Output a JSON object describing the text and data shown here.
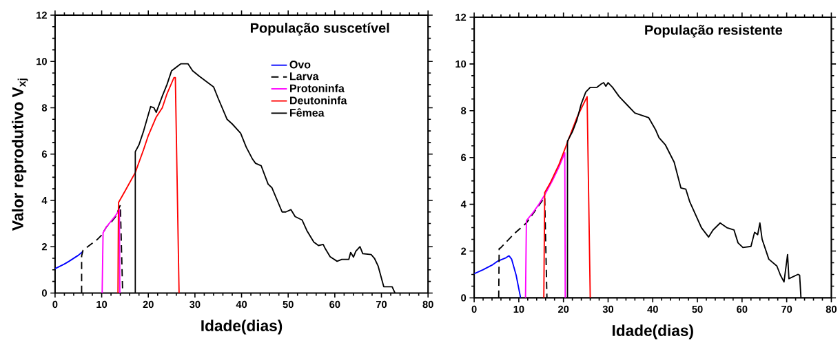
{
  "chart_data": [
    {
      "type": "line",
      "title": "População suscetível",
      "xlabel": "Idade(dias)",
      "ylabel": "Valor reprodutivo V$_{xj}$",
      "xlim": [
        0,
        80
      ],
      "ylim": [
        0,
        12
      ],
      "xticks": [
        0,
        10,
        20,
        30,
        40,
        50,
        60,
        70,
        80
      ],
      "yticks": [
        0,
        2,
        4,
        6,
        8,
        10,
        12
      ],
      "legend": "top right",
      "series": [
        {
          "name": "Ovo",
          "color": "#0000ff",
          "line_style": "solid",
          "x": [
            0,
            1,
            2,
            3,
            4,
            5,
            6
          ],
          "values": [
            1.05,
            1.15,
            1.25,
            1.37,
            1.5,
            1.63,
            1.8
          ]
        },
        {
          "name": "Larva",
          "color": "#000000",
          "line_style": "dashed",
          "x": [
            5.7,
            5.7,
            6,
            7,
            8,
            9,
            10,
            11,
            12,
            13,
            14,
            14.5
          ],
          "values": [
            0,
            1.6,
            1.85,
            2.0,
            2.15,
            2.3,
            2.5,
            2.85,
            3.05,
            3.3,
            3.8,
            0
          ]
        },
        {
          "name": "Protoninfa",
          "color": "#ff00ff",
          "line_style": "solid",
          "x": [
            10.1,
            10.3,
            11,
            12,
            13,
            13.8,
            13.9
          ],
          "values": [
            0,
            2.6,
            2.85,
            3.1,
            3.35,
            3.6,
            0
          ]
        },
        {
          "name": "Deutoninfa",
          "color": "#ff0000",
          "line_style": "solid",
          "x": [
            13.5,
            13.6,
            15,
            17.2,
            19,
            20,
            21.7,
            23,
            24,
            25.5,
            25.8,
            26.6
          ],
          "values": [
            0,
            3.9,
            4.4,
            5.2,
            6.2,
            6.8,
            7.6,
            8.0,
            8.6,
            9.3,
            9.3,
            0
          ]
        },
        {
          "name": "Fêmea",
          "color": "#000000",
          "line_style": "solid",
          "x": [
            17.2,
            17.2,
            18,
            19,
            20,
            20.5,
            21.2,
            21.7,
            23,
            24,
            25,
            26,
            27,
            28.5,
            29.5,
            31,
            33,
            34,
            35,
            36.9,
            38,
            39.8,
            41,
            42.3,
            43,
            44.2,
            45.7,
            46.5,
            48.7,
            49.5,
            50.6,
            51.5,
            53,
            54,
            55.5,
            56.5,
            57.5,
            58,
            59,
            60.5,
            61.5,
            63,
            63.4,
            64,
            64.5,
            65.4,
            66,
            67.8,
            68.5,
            69.3,
            70.5,
            72.3,
            72.9
          ],
          "values": [
            0,
            6.1,
            6.4,
            7.0,
            7.7,
            8.05,
            8.0,
            7.8,
            8.5,
            9.0,
            9.6,
            9.75,
            9.9,
            9.9,
            9.6,
            9.35,
            9.05,
            8.9,
            8.4,
            7.5,
            7.3,
            6.9,
            6.3,
            5.8,
            5.6,
            5.5,
            4.7,
            4.55,
            3.5,
            3.5,
            3.6,
            3.3,
            3.15,
            2.7,
            2.2,
            2.05,
            2.1,
            1.9,
            1.57,
            1.37,
            1.45,
            1.45,
            1.75,
            1.55,
            1.8,
            2.0,
            1.7,
            1.66,
            1.5,
            1.16,
            0.27,
            0.27,
            0
          ]
        }
      ]
    },
    {
      "type": "line",
      "title": "População resistente",
      "xlabel": "Idade(dias)",
      "xlim": [
        0,
        80
      ],
      "ylim": [
        0,
        12
      ],
      "xticks": [
        0,
        10,
        20,
        30,
        40,
        50,
        60,
        70,
        80
      ],
      "yticks": [
        0,
        2,
        4,
        6,
        8,
        10,
        12
      ],
      "series": [
        {
          "color": "#0000ff",
          "line_style": "solid",
          "x": [
            0,
            2,
            4,
            5.2,
            7,
            7.8,
            8.4,
            9.4,
            10.4
          ],
          "values": [
            1.03,
            1.2,
            1.4,
            1.56,
            1.7,
            1.8,
            1.65,
            0.97,
            0
          ]
        },
        {
          "color": "#000000",
          "line_style": "dashed",
          "x": [
            5.5,
            5.6,
            6,
            8,
            9,
            11.7,
            15.8,
            16.3
          ],
          "values": [
            0,
            2.1,
            2.15,
            2.55,
            2.75,
            3.2,
            4.3,
            0
          ]
        },
        {
          "color": "#ff00ff",
          "line_style": "solid",
          "x": [
            11.5,
            11.7,
            13,
            14.5,
            15.8,
            17.5,
            19,
            20.3,
            20.4
          ],
          "values": [
            0,
            3.3,
            3.6,
            4.0,
            4.4,
            5.0,
            5.6,
            6.2,
            0
          ]
        },
        {
          "color": "#ff0000",
          "line_style": "solid",
          "x": [
            15.6,
            15.8,
            17,
            18,
            19,
            20,
            21,
            22,
            23,
            24,
            25.3,
            26
          ],
          "values": [
            0,
            4.5,
            4.9,
            5.3,
            5.7,
            6.2,
            6.7,
            7.2,
            7.7,
            8.1,
            8.6,
            0
          ]
        },
        {
          "color": "#000000",
          "line_style": "solid",
          "x": [
            20.9,
            20.9,
            22,
            23,
            24,
            25,
            26,
            27.5,
            28.5,
            29,
            29.5,
            30,
            31,
            32.5,
            34.5,
            36,
            39.1,
            40.6,
            41.4,
            42.8,
            44.8,
            46.3,
            47.4,
            48.3,
            50.9,
            52.5,
            53.5,
            55.1,
            56.6,
            58.2,
            59.1,
            60.2,
            62,
            62.8,
            63.5,
            64,
            64.5,
            66,
            67.8,
            68.6,
            69.4,
            70.2,
            70.5,
            72.5,
            72.9,
            73.2
          ],
          "values": [
            0,
            6.7,
            7.1,
            7.6,
            8.3,
            8.8,
            9.0,
            9.0,
            9.15,
            9.2,
            9.05,
            9.2,
            9.0,
            8.6,
            8.2,
            7.9,
            7.7,
            7.2,
            6.85,
            6.55,
            5.8,
            4.7,
            4.65,
            4.1,
            3.0,
            2.6,
            2.9,
            3.2,
            3.0,
            2.9,
            2.35,
            2.15,
            2.2,
            2.8,
            2.7,
            3.2,
            2.5,
            1.65,
            1.36,
            0.97,
            0.68,
            1.85,
            0.82,
            1.0,
            0.97,
            0
          ]
        }
      ]
    }
  ]
}
